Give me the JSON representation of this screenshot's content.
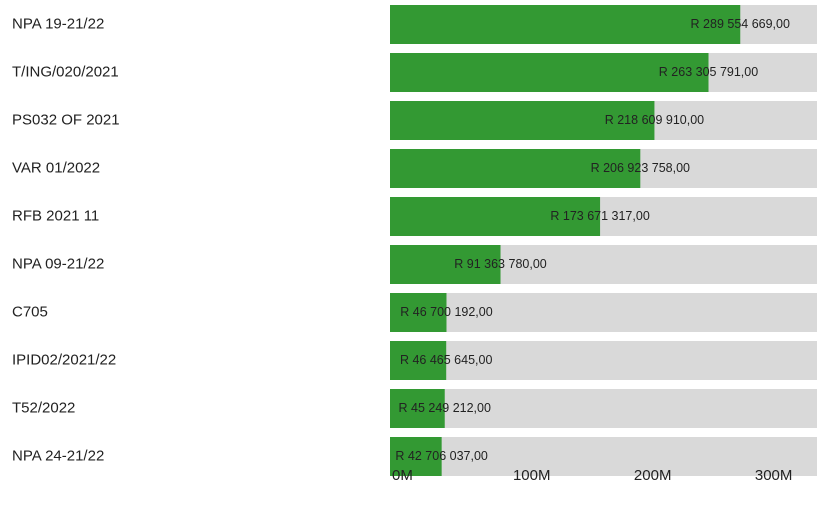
{
  "chart_data": {
    "type": "bar",
    "orientation": "horizontal",
    "categories": [
      "NPA 19-21/22",
      "T/ING/020/2021",
      "PS032 OF 2021",
      "VAR 01/2022",
      "RFB 2021 11",
      "NPA 09-21/22",
      "C705",
      "IPID02/2021/22",
      "T52/2022",
      "NPA 24-21/22"
    ],
    "values": [
      289554669,
      263305791,
      218609910,
      206923758,
      173671317,
      91363780,
      46700192,
      46465645,
      45249212,
      42706037
    ],
    "value_labels": [
      "R 289 554 669,00",
      "R 263 305 791,00",
      "R 218 609 910,00",
      "R 206 923 758,00",
      "R 173 671 317,00",
      "R 91 363 780,00",
      "R 46 700 192,00",
      "R 46 465 645,00",
      "R 45 249 212,00",
      "R 42 706 037,00"
    ],
    "color": "#339933",
    "track_color": "#d9d9d9",
    "xlim": [
      0,
      353000000
    ],
    "xticks": [
      {
        "value": 0,
        "label": "0M"
      },
      {
        "value": 100000000,
        "label": "100M"
      },
      {
        "value": 200000000,
        "label": "200M"
      },
      {
        "value": 300000000,
        "label": "300M"
      }
    ]
  }
}
